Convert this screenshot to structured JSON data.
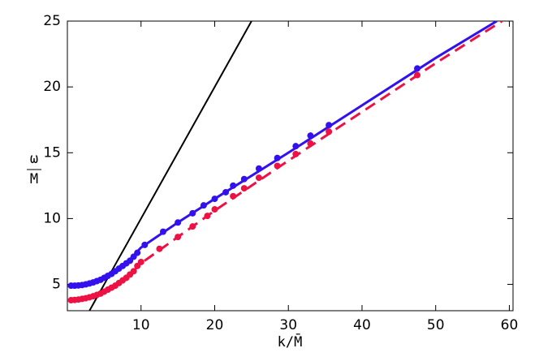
{
  "chart_data": {
    "type": "line",
    "xlabel": "k/M̄",
    "ylabel_numerator": "ω",
    "ylabel_denominator": "M",
    "xlim": [
      0,
      60.5
    ],
    "ylim": [
      3,
      25
    ],
    "xticks": [
      10,
      20,
      30,
      40,
      50,
      60
    ],
    "yticks": [
      5,
      10,
      15,
      20,
      25
    ],
    "series": [
      {
        "style": "solid",
        "color": "#000000",
        "x": [
          3,
          25
        ],
        "values": [
          3,
          25
        ]
      },
      {
        "style": "solid",
        "color": "#3311ee",
        "x": [
          0,
          2,
          4,
          6,
          8,
          10,
          15,
          20,
          30,
          40,
          50,
          58.3
        ],
        "values": [
          4.88,
          4.93,
          5.2,
          5.75,
          6.6,
          7.8,
          9.7,
          11.5,
          15.0,
          18.6,
          22.2,
          25
        ]
      },
      {
        "style": "dashed",
        "color": "#ee1144",
        "x": [
          0,
          2,
          4,
          6,
          8,
          10,
          15,
          20,
          30,
          40,
          50,
          59
        ],
        "values": [
          3.78,
          3.88,
          4.18,
          4.72,
          5.5,
          6.6,
          8.6,
          10.6,
          14.4,
          18.1,
          21.8,
          25
        ]
      },
      {
        "style": "points",
        "color": "#3311ee",
        "x": [
          0.5,
          1,
          1.5,
          2,
          2.5,
          3,
          3.5,
          4,
          4.5,
          5,
          5.5,
          6,
          6.5,
          7,
          7.5,
          8,
          8.5,
          9,
          9.5,
          10.5,
          13,
          15,
          17,
          18.5,
          20,
          21.5,
          22.5,
          24,
          26,
          28.5,
          31,
          33,
          35.5,
          47.5
        ],
        "values": [
          4.9,
          4.9,
          4.92,
          4.95,
          5.0,
          5.07,
          5.15,
          5.25,
          5.35,
          5.5,
          5.65,
          5.8,
          6.0,
          6.2,
          6.4,
          6.6,
          6.8,
          7.1,
          7.4,
          8.0,
          9.0,
          9.7,
          10.4,
          11.0,
          11.5,
          12.0,
          12.5,
          13.0,
          13.8,
          14.6,
          15.5,
          16.3,
          17.1,
          21.4
        ]
      },
      {
        "style": "points",
        "color": "#ee1144",
        "x": [
          0.5,
          1,
          1.5,
          2,
          2.5,
          3,
          3.5,
          4,
          4.5,
          5,
          5.5,
          6,
          6.5,
          7,
          7.5,
          8,
          8.5,
          9,
          9.5,
          10,
          12.5,
          15,
          17,
          19,
          20,
          22.5,
          24,
          26,
          28.5,
          31,
          33,
          35.5,
          47.5
        ],
        "values": [
          3.8,
          3.82,
          3.85,
          3.9,
          3.95,
          4.02,
          4.1,
          4.2,
          4.3,
          4.45,
          4.6,
          4.75,
          4.9,
          5.1,
          5.3,
          5.5,
          5.75,
          6.0,
          6.4,
          6.7,
          7.7,
          8.6,
          9.4,
          10.2,
          10.7,
          11.7,
          12.3,
          13.1,
          14.0,
          14.9,
          15.7,
          16.6,
          20.9
        ]
      }
    ]
  }
}
